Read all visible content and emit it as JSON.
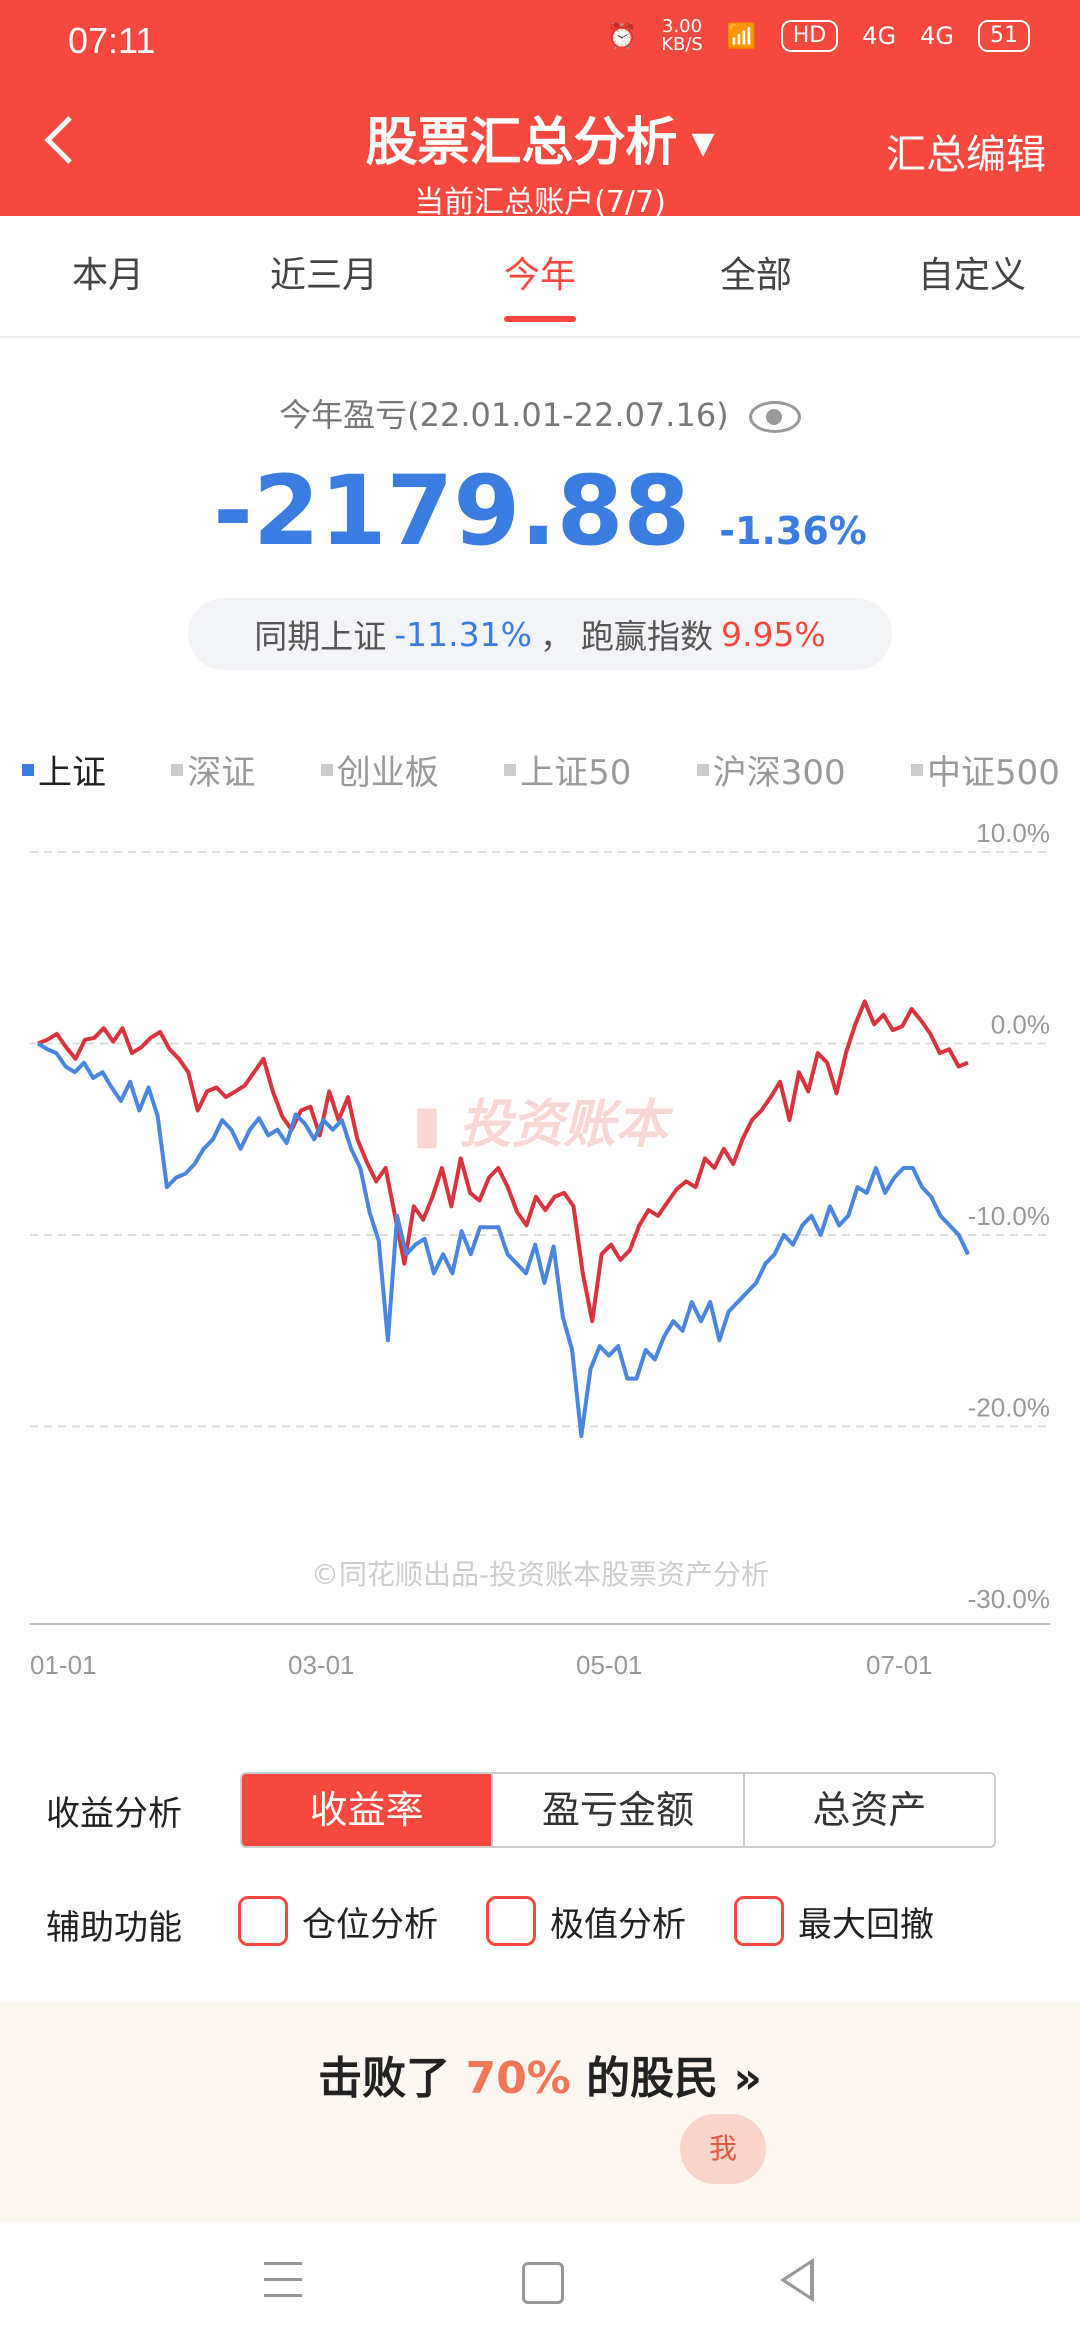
{
  "status": {
    "time": "07:11",
    "speed": "3.00\nKB/S",
    "battery": "51",
    "net1": "4G",
    "net2": "4G",
    "hd": "HD"
  },
  "header": {
    "title": "股票汇总分析",
    "subtitle": "当前汇总账户(7/7)",
    "edit_label": "汇总编辑"
  },
  "tabs": [
    {
      "label": "本月",
      "active": false
    },
    {
      "label": "近三月",
      "active": false
    },
    {
      "label": "今年",
      "active": true
    },
    {
      "label": "全部",
      "active": false
    },
    {
      "label": "自定义",
      "active": false
    }
  ],
  "summary": {
    "period": "今年盈亏(22.01.01-22.07.16)",
    "amount": "-2179.88",
    "pct": "-1.36%",
    "compare_prefix": "同期上证",
    "compare_value": "-11.31%",
    "compare_sep": "，",
    "beat_label": "跑赢指数",
    "beat_value": "9.95%"
  },
  "indices": [
    {
      "label": "上证",
      "active": true
    },
    {
      "label": "深证",
      "active": false
    },
    {
      "label": "创业板",
      "active": false
    },
    {
      "label": "上证50",
      "active": false
    },
    {
      "label": "沪深300",
      "active": false
    },
    {
      "label": "中证500",
      "active": false
    }
  ],
  "colors": {
    "accent": "#f5483f",
    "blue": "#3a7ce0",
    "grid": "#dddddd"
  },
  "chart_data": {
    "type": "line",
    "x_labels": [
      "01-01",
      "03-01",
      "05-01",
      "07-01"
    ],
    "y_ticks": [
      "10.0%",
      "0.0%",
      "-10.0%",
      "-20.0%",
      "-30.0%"
    ],
    "ylim": [
      -30,
      10
    ],
    "grid": true,
    "watermark": "投资账本",
    "footer": "©同花顺出品-投资账本股票资产分析",
    "series": [
      {
        "color": "#d9333f",
        "values": [
          0,
          0.2,
          0.5,
          -0.2,
          -0.8,
          0.2,
          0.3,
          0.8,
          0.1,
          0.8,
          -0.5,
          -0.2,
          0.3,
          0.6,
          -0.3,
          -0.8,
          -1.5,
          -3.5,
          -2.5,
          -2.3,
          -2.8,
          -2.5,
          -2.2,
          -1.5,
          -0.8,
          -2.5,
          -3.8,
          -4.5,
          -3.5,
          -3.3,
          -4.8,
          -2.5,
          -4.0,
          -2.8,
          -5.0,
          -6.2,
          -7.2,
          -6.5,
          -9.0,
          -11.5,
          -8.5,
          -9.2,
          -8.0,
          -6.5,
          -8.5,
          -6.0,
          -7.8,
          -8.2,
          -7.0,
          -6.5,
          -7.5,
          -8.8,
          -9.5,
          -8.0,
          -8.7,
          -8.0,
          -7.8,
          -8.5,
          -12.0,
          -14.5,
          -11.0,
          -10.5,
          -11.3,
          -10.8,
          -9.5,
          -8.7,
          -9.0,
          -8.3,
          -7.6,
          -7.2,
          -7.5,
          -6.0,
          -6.5,
          -5.5,
          -6.3,
          -5.0,
          -4.0,
          -3.5,
          -2.8,
          -2.0,
          -4.0,
          -1.5,
          -2.5,
          -0.5,
          -1.0,
          -2.6,
          -0.5,
          1.0,
          2.2,
          1.0,
          1.5,
          0.7,
          0.9,
          1.8,
          1.2,
          0.5,
          -0.5,
          -0.3,
          -1.2,
          -1.0
        ]
      },
      {
        "color": "#4a86e0",
        "values": [
          0,
          -0.3,
          -0.5,
          -1.2,
          -1.5,
          -1.0,
          -1.8,
          -1.5,
          -2.3,
          -3.0,
          -2.0,
          -3.5,
          -2.3,
          -3.8,
          -7.5,
          -7.0,
          -6.8,
          -6.3,
          -5.5,
          -5.0,
          -4.0,
          -4.5,
          -5.5,
          -4.5,
          -3.9,
          -4.8,
          -4.5,
          -5.2,
          -3.7,
          -4.2,
          -5.0,
          -4.0,
          -4.5,
          -4.0,
          -5.5,
          -6.5,
          -8.8,
          -10.3,
          -15.5,
          -9.0,
          -11.0,
          -10.5,
          -10.2,
          -12.0,
          -11.0,
          -12.0,
          -9.8,
          -11.0,
          -9.6,
          -9.6,
          -9.6,
          -11.0,
          -11.5,
          -12.0,
          -10.5,
          -12.5,
          -10.6,
          -14.3,
          -16.0,
          -20.5,
          -17.0,
          -15.8,
          -16.3,
          -15.8,
          -17.5,
          -17.5,
          -16.0,
          -16.5,
          -15.3,
          -14.5,
          -15.0,
          -13.5,
          -14.5,
          -13.5,
          -15.5,
          -14.0,
          -13.5,
          -13.0,
          -12.5,
          -11.5,
          -11.0,
          -10.0,
          -10.5,
          -9.5,
          -9.0,
          -10.0,
          -8.5,
          -9.5,
          -9.0,
          -7.5,
          -7.8,
          -6.5,
          -7.8,
          -7.0,
          -6.5,
          -6.5,
          -7.5,
          -8.0,
          -9.0,
          -9.5,
          -10.0,
          -11.0
        ]
      }
    ]
  },
  "analysis": {
    "label": "收益分析",
    "options": [
      {
        "label": "收益率",
        "active": true
      },
      {
        "label": "盈亏金额",
        "active": false
      },
      {
        "label": "总资产",
        "active": false
      }
    ],
    "aux_label": "辅助功能",
    "aux": [
      {
        "label": "仓位分析"
      },
      {
        "label": "极值分析"
      },
      {
        "label": "最大回撤"
      }
    ]
  },
  "banner": {
    "prefix": "击败了",
    "value": "70%",
    "suffix": "的股民",
    "arrow": "»",
    "me": "我"
  }
}
